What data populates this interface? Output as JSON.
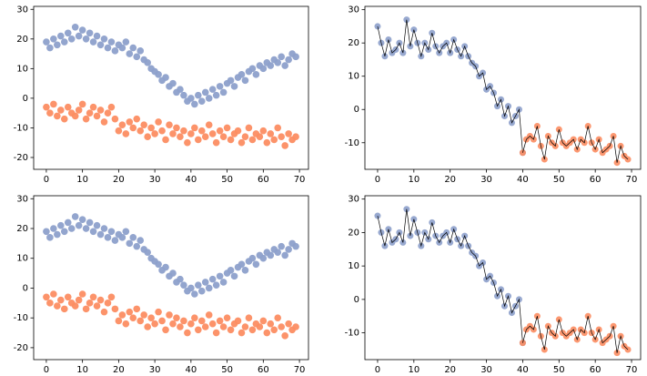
{
  "chart_data": [
    {
      "type": "scatter",
      "x": [
        0,
        1,
        2,
        3,
        4,
        5,
        6,
        7,
        8,
        9,
        10,
        11,
        12,
        13,
        14,
        15,
        16,
        17,
        18,
        19,
        20,
        21,
        22,
        23,
        24,
        25,
        26,
        27,
        28,
        29,
        30,
        31,
        32,
        33,
        34,
        35,
        36,
        37,
        38,
        39,
        40,
        41,
        42,
        43,
        44,
        45,
        46,
        47,
        48,
        49,
        50,
        51,
        52,
        53,
        54,
        55,
        56,
        57,
        58,
        59,
        60,
        61,
        62,
        63,
        64,
        65,
        66,
        67,
        68,
        69
      ],
      "series": [
        {
          "color": "#8da0cb",
          "values": [
            19,
            17,
            20,
            18,
            21,
            19,
            22,
            20,
            24,
            21,
            23,
            20,
            22,
            19,
            21,
            18,
            20,
            17,
            19,
            16,
            18,
            17,
            19,
            15,
            17,
            14,
            16,
            13,
            12,
            10,
            9,
            8,
            6,
            7,
            4,
            5,
            2,
            3,
            1,
            -1,
            0,
            -2,
            1,
            -1,
            2,
            0,
            3,
            1,
            4,
            2,
            5,
            6,
            4,
            7,
            8,
            6,
            9,
            10,
            8,
            11,
            10,
            12,
            11,
            13,
            12,
            14,
            11,
            13,
            15,
            14
          ]
        },
        {
          "color": "#fc8d62",
          "values": [
            -3,
            -5,
            -2,
            -6,
            -4,
            -7,
            -3,
            -5,
            -6,
            -4,
            -2,
            -7,
            -5,
            -3,
            -6,
            -4,
            -8,
            -5,
            -3,
            -7,
            -11,
            -9,
            -12,
            -8,
            -10,
            -7,
            -11,
            -9,
            -13,
            -10,
            -12,
            -8,
            -11,
            -14,
            -9,
            -12,
            -10,
            -13,
            -11,
            -15,
            -12,
            -10,
            -14,
            -11,
            -13,
            -9,
            -12,
            -15,
            -11,
            -13,
            -10,
            -14,
            -12,
            -11,
            -15,
            -13,
            -10,
            -14,
            -12,
            -13,
            -11,
            -15,
            -12,
            -14,
            -10,
            -13,
            -16,
            -12,
            -14,
            -13
          ]
        }
      ],
      "xlim": [
        -3.5,
        72.5
      ],
      "xticks": [
        0,
        10,
        20,
        30,
        40,
        50,
        60,
        70
      ],
      "ylim": [
        -24,
        31
      ],
      "yticks": [
        -20,
        -10,
        0,
        10,
        20,
        30
      ]
    },
    {
      "type": "line",
      "line_color": "#000000",
      "x": [
        0,
        1,
        2,
        3,
        4,
        5,
        6,
        7,
        8,
        9,
        10,
        11,
        12,
        13,
        14,
        15,
        16,
        17,
        18,
        19,
        20,
        21,
        22,
        23,
        24,
        25,
        26,
        27,
        28,
        29,
        30,
        31,
        32,
        33,
        34,
        35,
        36,
        37,
        38,
        39,
        40,
        41,
        42,
        43,
        44,
        45,
        46,
        47,
        48,
        49,
        50,
        51,
        52,
        53,
        54,
        55,
        56,
        57,
        58,
        59,
        60,
        61,
        62,
        63,
        64,
        65,
        66,
        67,
        68,
        69
      ],
      "series": [
        {
          "color": "#8da0cb",
          "values": [
            25,
            20,
            16,
            21,
            17,
            18,
            20,
            17,
            27,
            19,
            24,
            20,
            16,
            20,
            18,
            23,
            19,
            17,
            19,
            20,
            17,
            21,
            18,
            16,
            19,
            16,
            14,
            13,
            10,
            11,
            6,
            7,
            5,
            1,
            3,
            -2,
            1,
            -4,
            -2,
            0,
            -13,
            null,
            null,
            null,
            null,
            null,
            null,
            null,
            null,
            null,
            null,
            null,
            null,
            null,
            null,
            null,
            null,
            null,
            null,
            null,
            null,
            null,
            null,
            null,
            null,
            null,
            null,
            null,
            null,
            null
          ]
        },
        {
          "color": "#fc8d62",
          "values": [
            null,
            null,
            null,
            null,
            null,
            null,
            null,
            null,
            null,
            null,
            null,
            null,
            null,
            null,
            null,
            null,
            null,
            null,
            null,
            null,
            null,
            null,
            null,
            null,
            null,
            null,
            null,
            null,
            null,
            null,
            null,
            null,
            null,
            null,
            null,
            null,
            null,
            null,
            null,
            null,
            -13,
            -9,
            -8,
            -9,
            -5,
            -11,
            -15,
            -8,
            -10,
            -11,
            -6,
            -10,
            -11,
            -10,
            -9,
            -12,
            -9,
            -10,
            -5,
            -10,
            -12,
            -9,
            -13,
            -12,
            -11,
            -8,
            -16,
            -11,
            -14,
            -15
          ]
        }
      ],
      "xlim": [
        -3.5,
        72.5
      ],
      "xticks": [
        0,
        10,
        20,
        30,
        40,
        50,
        60,
        70
      ],
      "ylim": [
        -18,
        31
      ],
      "yticks": [
        -10,
        0,
        10,
        20,
        30
      ]
    },
    {
      "type": "scatter",
      "x": [
        0,
        1,
        2,
        3,
        4,
        5,
        6,
        7,
        8,
        9,
        10,
        11,
        12,
        13,
        14,
        15,
        16,
        17,
        18,
        19,
        20,
        21,
        22,
        23,
        24,
        25,
        26,
        27,
        28,
        29,
        30,
        31,
        32,
        33,
        34,
        35,
        36,
        37,
        38,
        39,
        40,
        41,
        42,
        43,
        44,
        45,
        46,
        47,
        48,
        49,
        50,
        51,
        52,
        53,
        54,
        55,
        56,
        57,
        58,
        59,
        60,
        61,
        62,
        63,
        64,
        65,
        66,
        67,
        68,
        69
      ],
      "series": [
        {
          "color": "#8da0cb",
          "values": [
            19,
            17,
            20,
            18,
            21,
            19,
            22,
            20,
            24,
            21,
            23,
            20,
            22,
            19,
            21,
            18,
            20,
            17,
            19,
            16,
            18,
            17,
            19,
            15,
            17,
            14,
            16,
            13,
            12,
            10,
            9,
            8,
            6,
            7,
            4,
            5,
            2,
            3,
            1,
            -1,
            0,
            -2,
            1,
            -1,
            2,
            0,
            3,
            1,
            4,
            2,
            5,
            6,
            4,
            7,
            8,
            6,
            9,
            10,
            8,
            11,
            10,
            12,
            11,
            13,
            12,
            14,
            11,
            13,
            15,
            14
          ]
        },
        {
          "color": "#fc8d62",
          "values": [
            -3,
            -5,
            -2,
            -6,
            -4,
            -7,
            -3,
            -5,
            -6,
            -4,
            -2,
            -7,
            -5,
            -3,
            -6,
            -4,
            -8,
            -5,
            -3,
            -7,
            -11,
            -9,
            -12,
            -8,
            -10,
            -7,
            -11,
            -9,
            -13,
            -10,
            -12,
            -8,
            -11,
            -14,
            -9,
            -12,
            -10,
            -13,
            -11,
            -15,
            -12,
            -10,
            -14,
            -11,
            -13,
            -9,
            -12,
            -15,
            -11,
            -13,
            -10,
            -14,
            -12,
            -11,
            -15,
            -13,
            -10,
            -14,
            -12,
            -13,
            -11,
            -15,
            -12,
            -14,
            -10,
            -13,
            -16,
            -12,
            -14,
            -13
          ]
        }
      ],
      "xlim": [
        -3.5,
        72.5
      ],
      "xticks": [
        0,
        10,
        20,
        30,
        40,
        50,
        60,
        70
      ],
      "ylim": [
        -24,
        31
      ],
      "yticks": [
        -20,
        -10,
        0,
        10,
        20,
        30
      ]
    },
    {
      "type": "line",
      "line_color": "#000000",
      "x": [
        0,
        1,
        2,
        3,
        4,
        5,
        6,
        7,
        8,
        9,
        10,
        11,
        12,
        13,
        14,
        15,
        16,
        17,
        18,
        19,
        20,
        21,
        22,
        23,
        24,
        25,
        26,
        27,
        28,
        29,
        30,
        31,
        32,
        33,
        34,
        35,
        36,
        37,
        38,
        39,
        40,
        41,
        42,
        43,
        44,
        45,
        46,
        47,
        48,
        49,
        50,
        51,
        52,
        53,
        54,
        55,
        56,
        57,
        58,
        59,
        60,
        61,
        62,
        63,
        64,
        65,
        66,
        67,
        68,
        69
      ],
      "series": [
        {
          "color": "#8da0cb",
          "values": [
            25,
            20,
            16,
            21,
            17,
            18,
            20,
            17,
            27,
            19,
            24,
            20,
            16,
            20,
            18,
            23,
            19,
            17,
            19,
            20,
            17,
            21,
            18,
            16,
            19,
            16,
            14,
            13,
            10,
            11,
            6,
            7,
            5,
            1,
            3,
            -2,
            1,
            -4,
            -2,
            0,
            -13,
            null,
            null,
            null,
            null,
            null,
            null,
            null,
            null,
            null,
            null,
            null,
            null,
            null,
            null,
            null,
            null,
            null,
            null,
            null,
            null,
            null,
            null,
            null,
            null,
            null,
            null,
            null,
            null,
            null
          ]
        },
        {
          "color": "#fc8d62",
          "values": [
            null,
            null,
            null,
            null,
            null,
            null,
            null,
            null,
            null,
            null,
            null,
            null,
            null,
            null,
            null,
            null,
            null,
            null,
            null,
            null,
            null,
            null,
            null,
            null,
            null,
            null,
            null,
            null,
            null,
            null,
            null,
            null,
            null,
            null,
            null,
            null,
            null,
            null,
            null,
            null,
            -13,
            -9,
            -8,
            -9,
            -5,
            -11,
            -15,
            -8,
            -10,
            -11,
            -6,
            -10,
            -11,
            -10,
            -9,
            -12,
            -9,
            -10,
            -5,
            -10,
            -12,
            -9,
            -13,
            -12,
            -11,
            -8,
            -16,
            -11,
            -14,
            -15
          ]
        }
      ],
      "xlim": [
        -3.5,
        72.5
      ],
      "xticks": [
        0,
        10,
        20,
        30,
        40,
        50,
        60,
        70
      ],
      "ylim": [
        -18,
        31
      ],
      "yticks": [
        -10,
        0,
        10,
        20,
        30
      ]
    }
  ]
}
